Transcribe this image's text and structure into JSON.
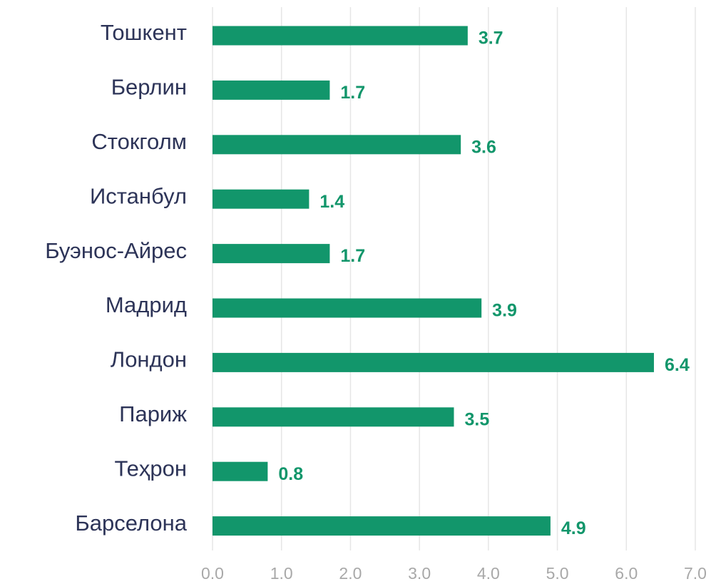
{
  "chart_data": {
    "type": "bar",
    "orientation": "horizontal",
    "categories": [
      "Тошкент",
      "Берлин",
      "Стокголм",
      "Истанбул",
      "Буэнос-Айрес",
      "Мадрид",
      "Лондон",
      "Париж",
      "Теҳрон",
      "Барселона"
    ],
    "values": [
      3.7,
      1.7,
      3.6,
      1.4,
      1.7,
      3.9,
      6.4,
      3.5,
      0.8,
      4.9
    ],
    "color": "#12966b",
    "xlim": [
      0,
      7
    ],
    "xticks": [
      {
        "value": 0,
        "label": "0.0"
      },
      {
        "value": 1,
        "label": "1.0"
      },
      {
        "value": 2,
        "label": "2.0"
      },
      {
        "value": 3,
        "label": "3.0"
      },
      {
        "value": 4,
        "label": "4.0"
      },
      {
        "value": 5,
        "label": "5.0"
      },
      {
        "value": 6,
        "label": "6.0"
      },
      {
        "value": 7,
        "label": "7.0"
      }
    ],
    "grid": true
  }
}
